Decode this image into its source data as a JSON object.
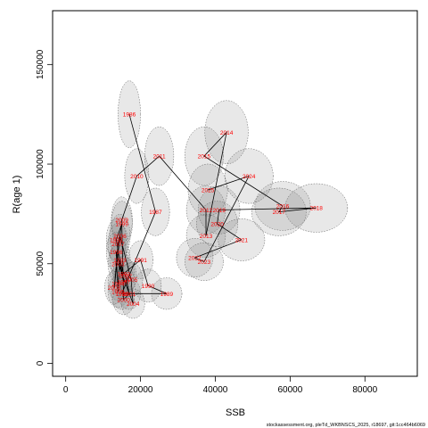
{
  "chart_data": {
    "type": "scatter",
    "xlabel": "SSB",
    "ylabel": "R(age 1)",
    "xlim": [
      -3500,
      94000
    ],
    "ylim": [
      -6500,
      177000
    ],
    "xticks": [
      0,
      20000,
      40000,
      60000,
      80000
    ],
    "yticks": [
      0,
      50000,
      100000,
      150000
    ],
    "yticks_labels": [
      "0",
      "50000",
      "100000",
      "150000"
    ],
    "xticks_labels": [
      "0",
      "20000",
      "40000",
      "60000",
      "80000"
    ],
    "grid": false,
    "legend": "none",
    "colors": {
      "labels": "#ff0000",
      "path": "#000000",
      "ellipse_fill": "#7f7f7f",
      "ellipse_stroke": "#555555"
    },
    "points": [
      {
        "year": "1986",
        "ssb": 17000,
        "r": 125000
      },
      {
        "year": "1987",
        "ssb": 24000,
        "r": 76000
      },
      {
        "year": "1988",
        "ssb": 15000,
        "r": 35000
      },
      {
        "year": "1989",
        "ssb": 27000,
        "r": 35000
      },
      {
        "year": "1990",
        "ssb": 22000,
        "r": 39000
      },
      {
        "year": "1991",
        "ssb": 20000,
        "r": 52000
      },
      {
        "year": "1992",
        "ssb": 15500,
        "r": 45000
      },
      {
        "year": "1993",
        "ssb": 14500,
        "r": 52000
      },
      {
        "year": "1994",
        "ssb": 14000,
        "r": 40000
      },
      {
        "year": "1995",
        "ssb": 14000,
        "r": 36000
      },
      {
        "year": "1996",
        "ssb": 13500,
        "r": 56000
      },
      {
        "year": "1997",
        "ssb": 15500,
        "r": 41000
      },
      {
        "year": "1998",
        "ssb": 13500,
        "r": 62000
      },
      {
        "year": "1999",
        "ssb": 15000,
        "r": 70000
      },
      {
        "year": "2000",
        "ssb": 15500,
        "r": 32000
      },
      {
        "year": "2001",
        "ssb": 17000,
        "r": 35000
      },
      {
        "year": "2002",
        "ssb": 16000,
        "r": 44000
      },
      {
        "year": "2003",
        "ssb": 14000,
        "r": 50000
      },
      {
        "year": "2004",
        "ssb": 18000,
        "r": 30000
      },
      {
        "year": "2005",
        "ssb": 17500,
        "r": 42000
      },
      {
        "year": "2006",
        "ssb": 14500,
        "r": 64000
      },
      {
        "year": "2007",
        "ssb": 14000,
        "r": 60000
      },
      {
        "year": "2008",
        "ssb": 13000,
        "r": 38000
      },
      {
        "year": "2009",
        "ssb": 15000,
        "r": 72000
      },
      {
        "year": "2010",
        "ssb": 19000,
        "r": 94000
      },
      {
        "year": "2011",
        "ssb": 25000,
        "r": 104000
      },
      {
        "year": "2012",
        "ssb": 37500,
        "r": 77000
      },
      {
        "year": "2013",
        "ssb": 37500,
        "r": 64000
      },
      {
        "year": "2014",
        "ssb": 43000,
        "r": 116000
      },
      {
        "year": "2015",
        "ssb": 37000,
        "r": 104000
      },
      {
        "year": "2016",
        "ssb": 58000,
        "r": 79000
      },
      {
        "year": "2017",
        "ssb": 57000,
        "r": 76000
      },
      {
        "year": "2018",
        "ssb": 67000,
        "r": 78000
      },
      {
        "year": "2019",
        "ssb": 41000,
        "r": 77000
      },
      {
        "year": "2020",
        "ssb": 40500,
        "r": 70000
      },
      {
        "year": "2021",
        "ssb": 47000,
        "r": 62000
      },
      {
        "year": "2022",
        "ssb": 34500,
        "r": 53000
      },
      {
        "year": "2023",
        "ssb": 37000,
        "r": 51000
      },
      {
        "year": "2024",
        "ssb": 49000,
        "r": 94000
      },
      {
        "year": "2025",
        "ssb": 38000,
        "r": 87000
      }
    ],
    "path_order": [
      "1986",
      "1987",
      "1988",
      "1989",
      "1990",
      "1991",
      "1992",
      "1993",
      "1994",
      "1995",
      "1996",
      "1997",
      "1998",
      "1999",
      "2000",
      "2001",
      "2002",
      "2003",
      "2004",
      "2005",
      "2006",
      "2007",
      "2008",
      "2009",
      "2010",
      "2011",
      "2012",
      "2013",
      "2014",
      "2015",
      "2016",
      "2017",
      "2018",
      "2019",
      "2020",
      "2021",
      "2022",
      "2023",
      "2024",
      "2025"
    ],
    "footnote": "stockassessment.org, pleTd_WKBNSCS_2025, r18697, git:1cc464b6069"
  }
}
